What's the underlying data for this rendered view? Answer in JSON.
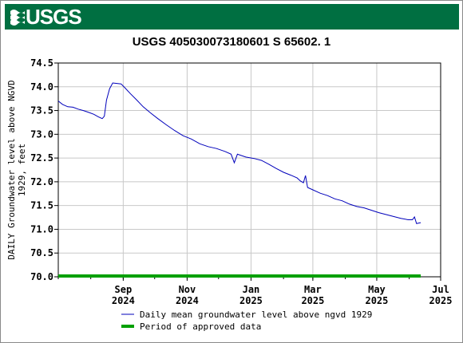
{
  "header": {
    "logo_text": "USGS"
  },
  "chart_data": {
    "type": "line",
    "title": "USGS 405030073180601 S 65602. 1",
    "ylabel_line1": "DAILY Groundwater level above NGVD",
    "ylabel_line2": "1929, feet",
    "ylim": [
      70.0,
      74.5
    ],
    "yticks": [
      "74.5",
      "74.0",
      "73.5",
      "73.0",
      "72.5",
      "72.0",
      "71.5",
      "71.0",
      "70.5",
      "70.0"
    ],
    "xlim": [
      "2024-07-01",
      "2025-07-01"
    ],
    "xticks": [
      {
        "month": "Sep",
        "year": "2024"
      },
      {
        "month": "Nov",
        "year": "2024"
      },
      {
        "month": "Jan",
        "year": "2025"
      },
      {
        "month": "Mar",
        "year": "2025"
      },
      {
        "month": "May",
        "year": "2025"
      },
      {
        "month": "Jul",
        "year": "2025"
      }
    ],
    "grid": true,
    "series": [
      {
        "name": "Daily mean groundwater level above ngvd 1929",
        "color": "#0000bb",
        "points": [
          [
            "2024-07-01",
            73.7
          ],
          [
            "2024-07-05",
            73.63
          ],
          [
            "2024-07-10",
            73.58
          ],
          [
            "2024-07-15",
            73.57
          ],
          [
            "2024-07-20",
            73.53
          ],
          [
            "2024-07-25",
            73.5
          ],
          [
            "2024-07-30",
            73.46
          ],
          [
            "2024-08-04",
            73.42
          ],
          [
            "2024-08-08",
            73.37
          ],
          [
            "2024-08-12",
            73.33
          ],
          [
            "2024-08-14",
            73.38
          ],
          [
            "2024-08-16",
            73.72
          ],
          [
            "2024-08-19",
            73.96
          ],
          [
            "2024-08-22",
            74.08
          ],
          [
            "2024-08-26",
            74.07
          ],
          [
            "2024-08-30",
            74.06
          ],
          [
            "2024-09-03",
            73.97
          ],
          [
            "2024-09-08",
            73.85
          ],
          [
            "2024-09-14",
            73.72
          ],
          [
            "2024-09-20",
            73.58
          ],
          [
            "2024-09-27",
            73.45
          ],
          [
            "2024-10-04",
            73.33
          ],
          [
            "2024-10-12",
            73.2
          ],
          [
            "2024-10-20",
            73.08
          ],
          [
            "2024-10-28",
            72.97
          ],
          [
            "2024-11-05",
            72.9
          ],
          [
            "2024-11-13",
            72.8
          ],
          [
            "2024-11-21",
            72.74
          ],
          [
            "2024-11-29",
            72.7
          ],
          [
            "2024-12-07",
            72.64
          ],
          [
            "2024-12-13",
            72.58
          ],
          [
            "2024-12-16",
            72.4
          ],
          [
            "2024-12-19",
            72.58
          ],
          [
            "2024-12-27",
            72.52
          ],
          [
            "2025-01-04",
            72.49
          ],
          [
            "2025-01-11",
            72.45
          ],
          [
            "2025-01-18",
            72.37
          ],
          [
            "2025-01-25",
            72.28
          ],
          [
            "2025-02-01",
            72.2
          ],
          [
            "2025-02-08",
            72.14
          ],
          [
            "2025-02-14",
            72.08
          ],
          [
            "2025-02-17",
            72.02
          ],
          [
            "2025-02-20",
            71.98
          ],
          [
            "2025-02-22",
            72.13
          ],
          [
            "2025-02-24",
            71.88
          ],
          [
            "2025-03-01",
            71.83
          ],
          [
            "2025-03-08",
            71.76
          ],
          [
            "2025-03-15",
            71.71
          ],
          [
            "2025-03-22",
            71.64
          ],
          [
            "2025-03-29",
            71.6
          ],
          [
            "2025-04-05",
            71.53
          ],
          [
            "2025-04-12",
            71.48
          ],
          [
            "2025-04-19",
            71.45
          ],
          [
            "2025-04-26",
            71.4
          ],
          [
            "2025-05-03",
            71.35
          ],
          [
            "2025-05-10",
            71.31
          ],
          [
            "2025-05-17",
            71.27
          ],
          [
            "2025-05-24",
            71.23
          ],
          [
            "2025-05-31",
            71.2
          ],
          [
            "2025-06-04",
            71.2
          ],
          [
            "2025-06-06",
            71.26
          ],
          [
            "2025-06-08",
            71.12
          ],
          [
            "2025-06-12",
            71.14
          ]
        ]
      }
    ],
    "approved_period": {
      "name": "Period of approved data",
      "color": "#00a000",
      "start": "2024-07-01",
      "end": "2025-06-12",
      "value": 70.0
    }
  }
}
